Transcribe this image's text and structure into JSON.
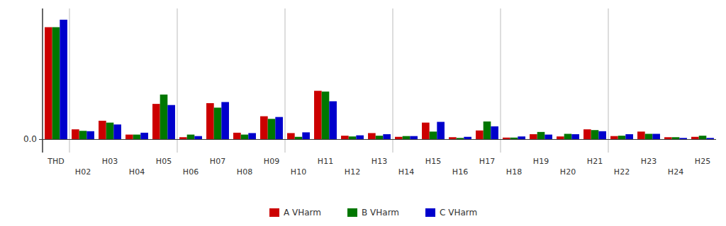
{
  "chart_data": {
    "type": "bar",
    "categories": [
      "THD",
      "H02",
      "H03",
      "H04",
      "H05",
      "H06",
      "H07",
      "H08",
      "H09",
      "H10",
      "H11",
      "H12",
      "H13",
      "H14",
      "H15",
      "H16",
      "H17",
      "H18",
      "H19",
      "H20",
      "H21",
      "H22",
      "H23",
      "H24",
      "H25"
    ],
    "series": [
      {
        "name": "A VHarm",
        "color": "#cc0000",
        "values": [
          3.0,
          0.27,
          0.5,
          0.13,
          0.95,
          0.06,
          0.97,
          0.18,
          0.62,
          0.17,
          1.3,
          0.1,
          0.17,
          0.07,
          0.45,
          0.06,
          0.24,
          0.05,
          0.14,
          0.08,
          0.27,
          0.09,
          0.21,
          0.06,
          0.07
        ]
      },
      {
        "name": "B VHarm",
        "color": "#007700",
        "values": [
          3.0,
          0.23,
          0.45,
          0.13,
          1.2,
          0.13,
          0.85,
          0.13,
          0.55,
          0.07,
          1.28,
          0.08,
          0.1,
          0.09,
          0.21,
          0.04,
          0.48,
          0.05,
          0.2,
          0.15,
          0.25,
          0.1,
          0.15,
          0.06,
          0.1
        ]
      },
      {
        "name": "C VHarm",
        "color": "#0000cc",
        "values": [
          3.2,
          0.22,
          0.4,
          0.18,
          0.92,
          0.09,
          1.0,
          0.17,
          0.6,
          0.19,
          1.02,
          0.11,
          0.14,
          0.09,
          0.47,
          0.07,
          0.35,
          0.08,
          0.13,
          0.14,
          0.22,
          0.14,
          0.15,
          0.04,
          0.04
        ]
      }
    ],
    "ylim": [
      -0.35,
      3.5
    ],
    "yticks": [
      {
        "value": 0,
        "label": "0.0"
      }
    ],
    "grid": false,
    "legend": "bottom"
  }
}
